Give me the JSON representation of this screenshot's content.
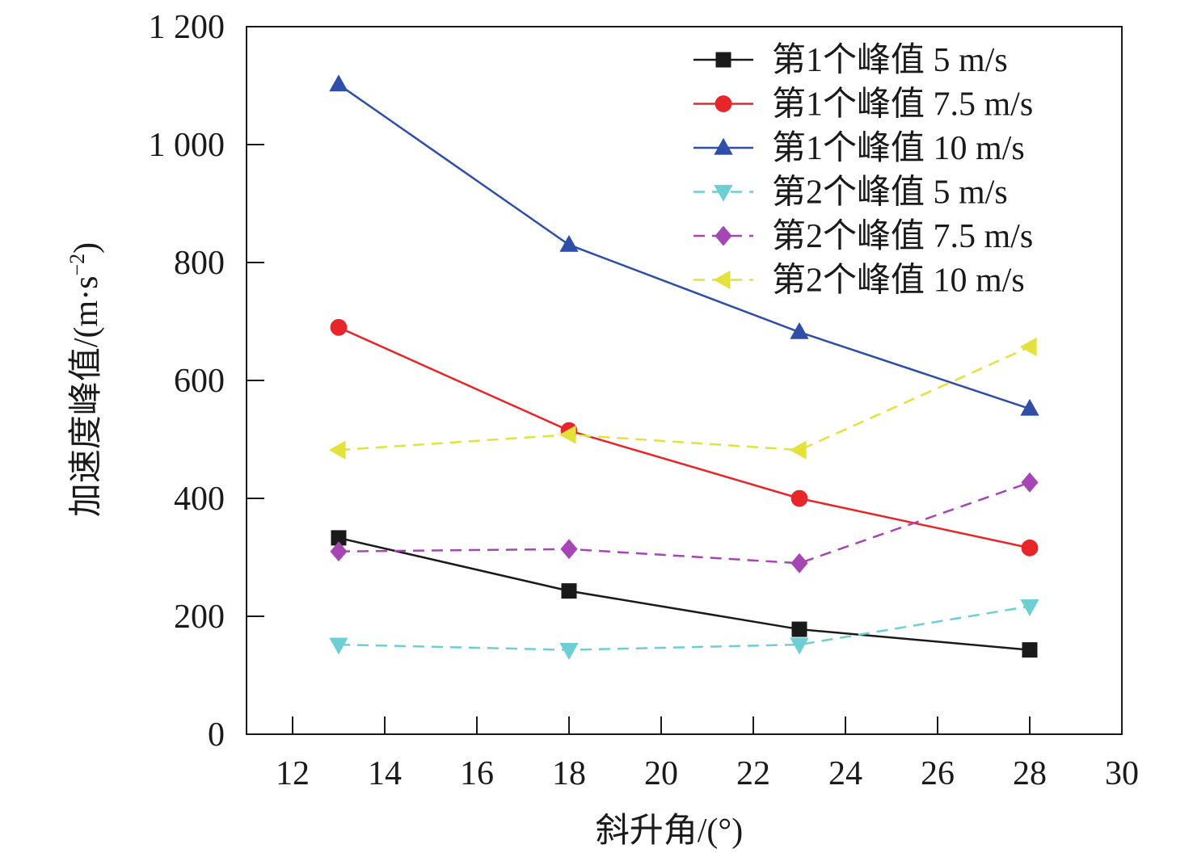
{
  "chart_data": {
    "type": "line",
    "xlabel": "斜升角/(°)",
    "ylabel": "加速度峰值/(m·s",
    "ylabel_sup": "−2",
    "ylabel_close": ")",
    "xlim": [
      11,
      30
    ],
    "ylim": [
      0,
      1200
    ],
    "xticks": [
      12,
      14,
      16,
      18,
      20,
      22,
      24,
      26,
      28,
      30
    ],
    "yticks": [
      0,
      200,
      400,
      600,
      800,
      1000,
      1200
    ],
    "ytick_labels": [
      "0",
      "200",
      "400",
      "600",
      "800",
      "1 000",
      "1 200"
    ],
    "x": [
      13,
      18,
      23,
      28
    ],
    "legend_position": "top-right",
    "grid": false,
    "series": [
      {
        "name": "第1个峰值 5 m/s",
        "values": [
          333,
          243,
          178,
          143
        ],
        "color": "#1a1a1a",
        "dash": false,
        "marker": "square"
      },
      {
        "name": "第1个峰值 7.5 m/s",
        "values": [
          690,
          515,
          400,
          316
        ],
        "color": "#e8262a",
        "dash": false,
        "marker": "circle"
      },
      {
        "name": "第1个峰值 10 m/s",
        "values": [
          1102,
          830,
          682,
          552
        ],
        "color": "#2e4ea8",
        "dash": false,
        "marker": "triangle-up"
      },
      {
        "name": "第2个峰值 5 m/s",
        "values": [
          152,
          143,
          152,
          217
        ],
        "color": "#6ccfd3",
        "dash": true,
        "marker": "triangle-down"
      },
      {
        "name": "第2个峰值 7.5 m/s",
        "values": [
          310,
          314,
          290,
          427
        ],
        "color": "#a546b4",
        "dash": true,
        "marker": "diamond"
      },
      {
        "name": "第2个峰值 10 m/s",
        "values": [
          482,
          508,
          482,
          657
        ],
        "color": "#e2e23a",
        "dash": true,
        "marker": "triangle-left"
      }
    ]
  }
}
